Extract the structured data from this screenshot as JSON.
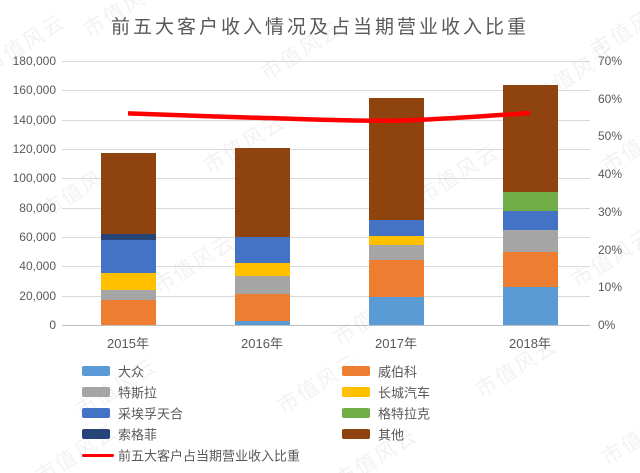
{
  "watermark": {
    "text": "市值风云"
  },
  "chart_data": {
    "type": "bar",
    "subtype": "stacked-column-with-line",
    "title": "前五大客户收入情况及占当期营业收入比重",
    "categories": [
      "2015年",
      "2016年",
      "2017年",
      "2018年"
    ],
    "series": [
      {
        "name": "大众",
        "color": "#5B9BD5",
        "values": [
          0,
          2900,
          19300,
          26100
        ]
      },
      {
        "name": "威伯科",
        "color": "#ED7D31",
        "values": [
          17100,
          18200,
          25100,
          23900
        ]
      },
      {
        "name": "特斯拉",
        "color": "#A5A5A5",
        "values": [
          6800,
          12300,
          10200,
          14800
        ]
      },
      {
        "name": "长城汽车",
        "color": "#FFC000",
        "values": [
          11600,
          8700,
          6300,
          0
        ]
      },
      {
        "name": "采埃孚天合",
        "color": "#4472C4",
        "values": [
          22500,
          17700,
          10700,
          13000
        ]
      },
      {
        "name": "格特拉克",
        "color": "#70AD47",
        "values": [
          0,
          0,
          0,
          13200
        ]
      },
      {
        "name": "索格菲",
        "color": "#264478",
        "values": [
          4100,
          0,
          0,
          0
        ]
      },
      {
        "name": "其他",
        "color": "#8F430E",
        "values": [
          54900,
          61000,
          83100,
          72800
        ]
      }
    ],
    "totals": [
      117000,
      120800,
      154700,
      163800
    ],
    "line_series": {
      "name": "前五大客户占当期营业收入比重",
      "color": "#FF0000",
      "axis": "right",
      "unit": "%",
      "values": [
        56.1,
        54.9,
        54.2,
        56.2
      ]
    },
    "left_axis": {
      "min": 0,
      "max": 180000,
      "step": 20000,
      "tick_labels": [
        "0",
        "20,000",
        "40,000",
        "60,000",
        "80,000",
        "100,000",
        "120,000",
        "140,000",
        "160,000",
        "180,000"
      ]
    },
    "right_axis": {
      "min": 0,
      "max": 70,
      "step": 10,
      "tick_labels": [
        "0%",
        "10%",
        "20%",
        "30%",
        "40%",
        "50%",
        "60%",
        "70%"
      ]
    },
    "grid": true,
    "legend_position": "bottom"
  }
}
